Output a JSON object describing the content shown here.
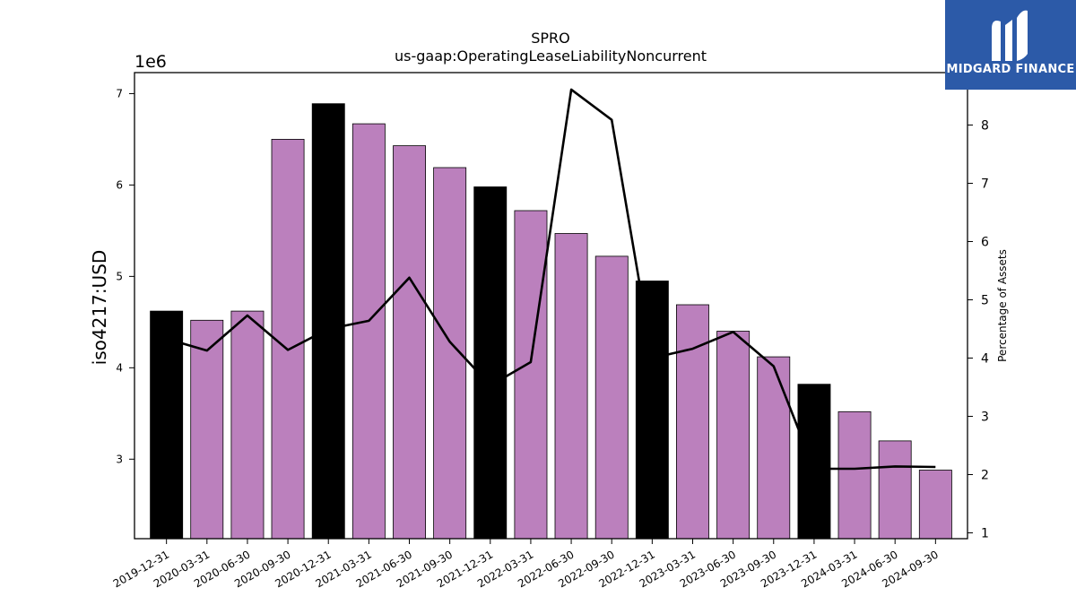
{
  "chart_data": {
    "type": "bar",
    "title": "SPRO",
    "subtitle": "us-gaap:OperatingLeaseLiabilityNoncurrent",
    "ylabel": "iso4217:USD",
    "y_multiplier_label": "1e6",
    "y2label": "Percentage of Assets",
    "ylim": [
      2.13,
      7.23
    ],
    "y2lim": [
      0.9,
      8.9
    ],
    "yticks": [
      "3",
      "4",
      "5",
      "6",
      "7"
    ],
    "y2ticks": [
      "1",
      "2",
      "3",
      "4",
      "5",
      "6",
      "7",
      "8"
    ],
    "grid": false,
    "categories": [
      "2019-12-31",
      "2020-03-31",
      "2020-06-30",
      "2020-09-30",
      "2020-12-31",
      "2021-03-31",
      "2021-06-30",
      "2021-09-30",
      "2021-12-31",
      "2022-03-31",
      "2022-06-30",
      "2022-09-30",
      "2022-12-31",
      "2023-03-31",
      "2023-06-30",
      "2023-09-30",
      "2023-12-31",
      "2024-03-31",
      "2024-06-30",
      "2024-09-30"
    ],
    "values": [
      4.62,
      4.52,
      4.62,
      6.5,
      6.89,
      6.67,
      6.43,
      6.19,
      5.98,
      5.72,
      5.47,
      5.22,
      4.95,
      4.69,
      4.4,
      4.12,
      3.82,
      3.52,
      3.2,
      2.88
    ],
    "bar_colors": [
      "#000000",
      "#bb80bd",
      "#bb80bd",
      "#bb80bd",
      "#000000",
      "#bb80bd",
      "#bb80bd",
      "#bb80bd",
      "#000000",
      "#bb80bd",
      "#bb80bd",
      "#bb80bd",
      "#000000",
      "#bb80bd",
      "#bb80bd",
      "#bb80bd",
      "#000000",
      "#bb80bd",
      "#bb80bd",
      "#bb80bd"
    ],
    "line_values": [
      4.33,
      4.13,
      4.73,
      4.14,
      4.5,
      4.64,
      5.38,
      4.28,
      3.53,
      3.93,
      8.61,
      8.09,
      4.0,
      4.16,
      4.45,
      3.86,
      2.1,
      2.1,
      2.14,
      2.13
    ],
    "line_color": "#000000"
  },
  "logo": {
    "text": "MIDGARD FINANCE",
    "bg_color": "#2c5aa8"
  }
}
